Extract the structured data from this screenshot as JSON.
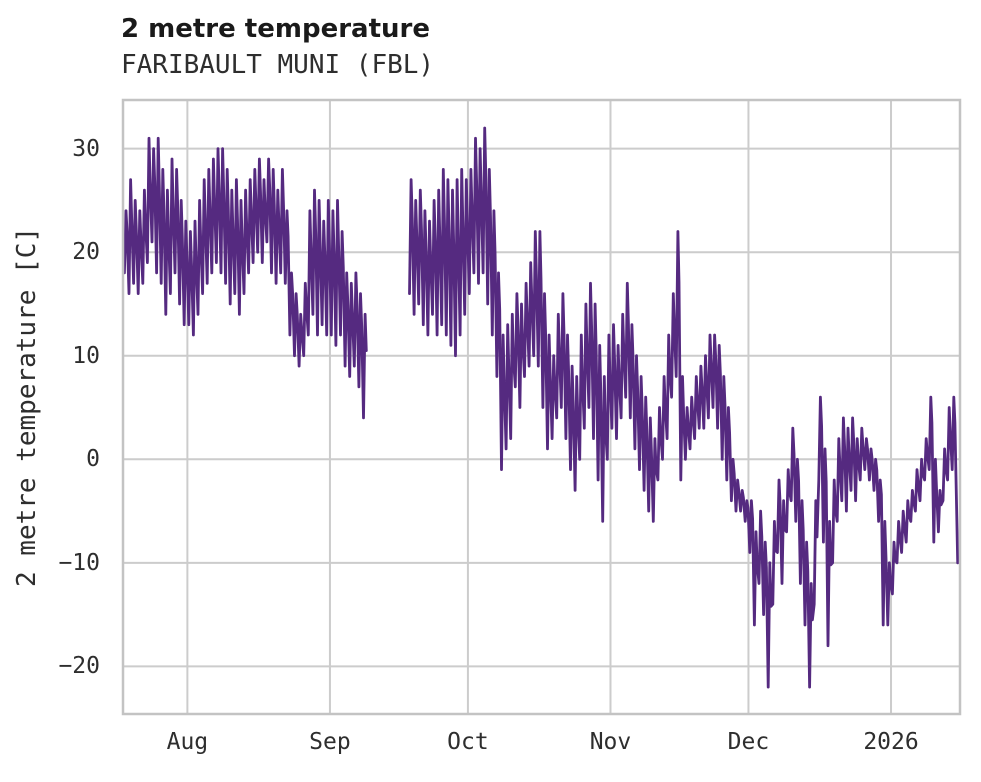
{
  "header": {
    "title": "2 metre temperature",
    "subtitle": "FARIBAULT MUNI (FBL)"
  },
  "chart_data": {
    "type": "line",
    "title": "2 metre temperature",
    "subtitle": "FARIBAULT MUNI (FBL)",
    "xlabel": "",
    "ylabel": "2 metre temperature [C]",
    "grid": true,
    "legend": "none",
    "y_ticks": [
      30,
      20,
      10,
      0,
      -10,
      -20
    ],
    "y_tick_labels": [
      "30",
      "20",
      "10",
      "0",
      "−10",
      "−20"
    ],
    "ylim": [
      -24.6,
      34.7
    ],
    "axes": {
      "x_tick_labels": [
        "Aug",
        "Sep",
        "Oct",
        "Nov",
        "Dec",
        "2026"
      ],
      "x_tick_day_index": [
        14,
        45,
        75,
        106,
        136,
        167
      ],
      "domain_days": [
        0,
        182
      ],
      "note": "x axis is time; ticks mark month starts, day index 0 = left plot edge (about two weeks before the Aug tick); data gap of ~9 days in the null run"
    },
    "colors": {
      "line": "#552a80",
      "grid": "#cccccc",
      "spine": "#c3c3c3",
      "title_text": "#1a1a1a",
      "text": "#2e2e2e"
    },
    "series": [
      {
        "name": "2 metre temperature",
        "encoding": "one entry per day: [daily_high_C, daily_low_C], null = missing data",
        "daily_high_low": [
          [
            24,
            18
          ],
          [
            27,
            16
          ],
          [
            25,
            17
          ],
          [
            24,
            16
          ],
          [
            26,
            17
          ],
          [
            31,
            19
          ],
          [
            30,
            21
          ],
          [
            31,
            18
          ],
          [
            28,
            17
          ],
          [
            26,
            14
          ],
          [
            29,
            16
          ],
          [
            28,
            18
          ],
          [
            25,
            15
          ],
          [
            23,
            13
          ],
          [
            22,
            13
          ],
          [
            23,
            12
          ],
          [
            25,
            14
          ],
          [
            27,
            16
          ],
          [
            28,
            17
          ],
          [
            29,
            18
          ],
          [
            30,
            19
          ],
          [
            30,
            18
          ],
          [
            28,
            17
          ],
          [
            26,
            15
          ],
          [
            27,
            16
          ],
          [
            25,
            14
          ],
          [
            26,
            16
          ],
          [
            27,
            18
          ],
          [
            28,
            19
          ],
          [
            29,
            20
          ],
          [
            27,
            19
          ],
          [
            29,
            21
          ],
          [
            28,
            18
          ],
          [
            26,
            17
          ],
          [
            28,
            18
          ],
          [
            24,
            17
          ],
          [
            18,
            12
          ],
          [
            16,
            10
          ],
          [
            14,
            9
          ],
          [
            17,
            10
          ],
          [
            24,
            12
          ],
          [
            26,
            14
          ],
          [
            25,
            12
          ],
          [
            23,
            13
          ],
          [
            25,
            12
          ],
          [
            24,
            12
          ],
          [
            25,
            11
          ],
          [
            22,
            12
          ],
          [
            18,
            9
          ],
          [
            17,
            8
          ],
          [
            18,
            9
          ],
          [
            16,
            7
          ],
          [
            14,
            4
          ],
          null,
          null,
          null,
          null,
          null,
          null,
          null,
          null,
          null,
          [
            27,
            16
          ],
          [
            25,
            14
          ],
          [
            26,
            15
          ],
          [
            24,
            13
          ],
          [
            23,
            12
          ],
          [
            25,
            14
          ],
          [
            26,
            12
          ],
          [
            28,
            13
          ],
          [
            27,
            12
          ],
          [
            26,
            11
          ],
          [
            27,
            10
          ],
          [
            28,
            12
          ],
          [
            27,
            14
          ],
          [
            28,
            16
          ],
          [
            31,
            18
          ],
          [
            30,
            17
          ],
          [
            32,
            18
          ],
          [
            28,
            15
          ],
          [
            24,
            12
          ],
          [
            18,
            8
          ],
          [
            12,
            -1
          ],
          [
            13,
            1
          ],
          [
            14,
            2
          ],
          [
            16,
            7
          ],
          [
            15,
            5
          ],
          [
            17,
            8
          ],
          [
            19,
            9
          ],
          [
            22,
            10
          ],
          [
            22,
            9
          ],
          [
            16,
            5
          ],
          [
            12,
            1
          ],
          [
            10,
            2
          ],
          [
            14,
            4
          ],
          [
            16,
            5
          ],
          [
            12,
            2
          ],
          [
            9,
            -1
          ],
          [
            8,
            -3
          ],
          [
            12,
            0
          ],
          [
            15,
            3
          ],
          [
            17,
            5
          ],
          [
            15,
            2
          ],
          [
            11,
            -2
          ],
          [
            8,
            -6
          ],
          [
            12,
            0
          ],
          [
            13,
            3
          ],
          [
            11,
            2
          ],
          [
            14,
            4
          ],
          [
            17,
            6
          ],
          [
            13,
            4
          ],
          [
            10,
            1
          ],
          [
            8,
            -1
          ],
          [
            6,
            -3
          ],
          [
            4,
            -5
          ],
          [
            2,
            -6
          ],
          [
            5,
            -2
          ],
          [
            8,
            0
          ],
          [
            12,
            2
          ],
          [
            16,
            6
          ],
          [
            22,
            8
          ],
          [
            8,
            -2
          ],
          [
            5,
            0
          ],
          [
            6,
            1
          ],
          [
            8,
            2
          ],
          [
            9,
            3
          ],
          [
            10,
            3
          ],
          [
            12,
            4
          ],
          [
            12,
            5
          ],
          [
            11,
            3
          ],
          [
            8,
            0
          ],
          [
            5,
            -2
          ],
          [
            0,
            -4
          ],
          [
            -2,
            -5
          ],
          [
            -3,
            -5
          ],
          [
            -4,
            -6
          ],
          [
            -4,
            -9
          ],
          [
            -7,
            -16
          ],
          [
            -5,
            -12
          ],
          [
            -8,
            -15
          ],
          [
            -10,
            -22
          ],
          [
            -6,
            -14
          ],
          [
            -2,
            -9
          ],
          [
            -4,
            -12
          ],
          [
            -1,
            -7
          ],
          [
            3,
            -4
          ],
          [
            0,
            -6
          ],
          [
            -4,
            -12
          ],
          [
            -8,
            -16
          ],
          [
            -12,
            -22
          ],
          [
            -4,
            -14
          ],
          [
            6,
            -2
          ],
          [
            1,
            -8
          ],
          [
            -6,
            -18
          ],
          [
            -2,
            -10
          ],
          [
            2,
            -6
          ],
          [
            4,
            -4
          ],
          [
            3,
            -5
          ],
          [
            4,
            -3
          ],
          [
            2,
            -4
          ],
          [
            3,
            -2
          ],
          [
            2,
            -1
          ],
          [
            1,
            -2
          ],
          [
            0,
            -3
          ],
          [
            -2,
            -6
          ],
          [
            -6,
            -16
          ],
          [
            -10,
            -16
          ],
          [
            -8,
            -13
          ],
          [
            -6,
            -10
          ],
          [
            -5,
            -9
          ],
          [
            -4,
            -8
          ],
          [
            -3,
            -6
          ],
          [
            -1,
            -5
          ],
          [
            0,
            -4
          ],
          [
            2,
            -2
          ],
          [
            6,
            -1
          ],
          [
            0,
            -8
          ],
          [
            -3,
            -7
          ],
          [
            1,
            -4
          ],
          [
            5,
            -2
          ],
          [
            6,
            -1
          ]
        ],
        "final_points": [
          [
            181.5,
            -10
          ]
        ]
      }
    ]
  }
}
